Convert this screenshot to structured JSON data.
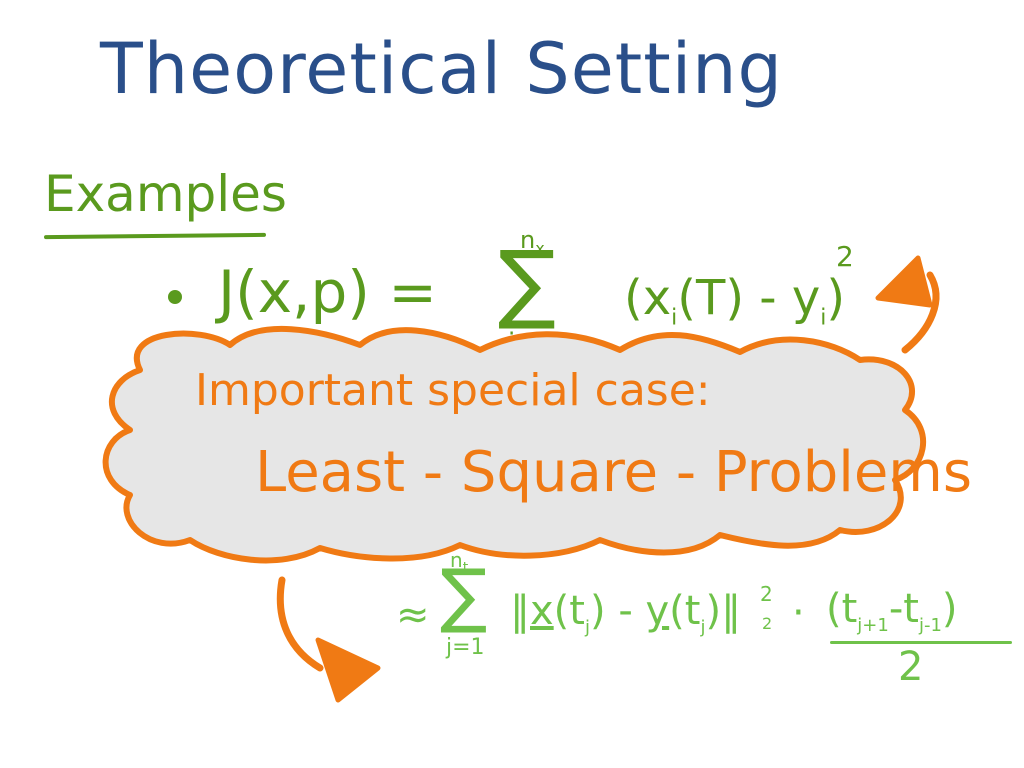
{
  "title": "Theoretical Setting",
  "section": "Examples",
  "formula1": {
    "lhs": "J(x,p) =",
    "sum_symbol": "∑",
    "upper": "n",
    "upper_sub": "x",
    "lower": "i=1",
    "body": "(x",
    "sub_i": "i",
    "mid": "(T) - y",
    "sub_i2": "i",
    "close": ")",
    "power": "2"
  },
  "callout": {
    "line1": "Important special case:",
    "line2": "Least - Square - Problems"
  },
  "formula2": {
    "approx": "≈",
    "sum_symbol": "∑",
    "upper": "n",
    "upper_sub": "t",
    "lower": "j=1",
    "norm_open": "‖",
    "x_term": "x",
    "x_arg": "(t",
    "sub_j": "j",
    "x_close": ")",
    "minus": "-",
    "y_term": "y",
    "y_arg": "(t",
    "sub_j2": "j",
    "y_close": ")",
    "norm_close": "‖",
    "norm_sup": "2",
    "norm_sub": "2",
    "dot": "·",
    "frac_num": "(t",
    "frac_sub1": "j+1",
    "frac_minus": "-t",
    "frac_sub2": "j-1",
    "frac_close": ")",
    "frac_den": "2"
  },
  "colors": {
    "title": "#2a4f8a",
    "green": "#5a9a1e",
    "light_green": "#6fc24a",
    "orange": "#f07a14",
    "cloud_fill": "#e6e6e6"
  }
}
